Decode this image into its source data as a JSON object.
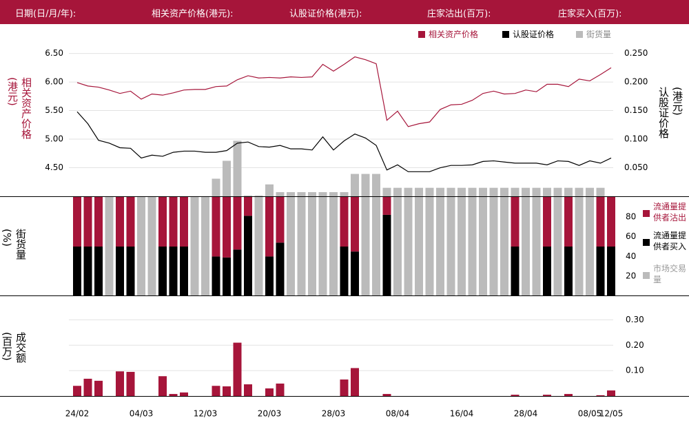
{
  "header": [
    "日期(日/月/年):",
    "相关资产价格(港元):",
    "认股证价格(港元):",
    "庄家沽出(百万):",
    "庄家买入(百万):"
  ],
  "chart_data": [
    {
      "type": "line",
      "y_label": "相关资产价格(港元)",
      "y2_label": "认股证价格(港元)",
      "ylim": [
        4.0,
        6.7
      ],
      "yticks": [
        {
          "value": 6.5,
          "label": "6.50"
        },
        {
          "value": 6.0,
          "label": "6.00"
        },
        {
          "value": 5.5,
          "label": "5.50"
        },
        {
          "value": 5.0,
          "label": "5.00"
        },
        {
          "value": 4.5,
          "label": "4.50"
        }
      ],
      "y2lim": [
        0.0,
        0.27
      ],
      "y2ticks": [
        {
          "value": 0.25,
          "label": "0.250"
        },
        {
          "value": 0.2,
          "label": "0.200"
        },
        {
          "value": 0.15,
          "label": "0.150"
        },
        {
          "value": 0.1,
          "label": "0.100"
        },
        {
          "value": 0.05,
          "label": "0.050"
        }
      ],
      "y3lim": [
        0,
        100
      ],
      "grid": true,
      "series": [
        {
          "name": "相关资产价格",
          "color": "#a6153a",
          "axis": "y",
          "values": [
            5.99,
            5.93,
            5.91,
            5.86,
            5.8,
            5.84,
            5.7,
            5.79,
            5.77,
            5.81,
            5.86,
            5.87,
            5.87,
            5.92,
            5.93,
            6.04,
            6.11,
            6.07,
            6.08,
            6.07,
            6.09,
            6.08,
            6.09,
            6.31,
            6.19,
            6.31,
            6.44,
            6.39,
            6.32,
            5.33,
            5.49,
            5.22,
            5.27,
            5.3,
            5.52,
            5.6,
            5.61,
            5.68,
            5.8,
            5.84,
            5.79,
            5.8,
            5.86,
            5.83,
            5.96,
            5.96,
            5.92,
            6.05,
            6.02,
            6.13,
            6.25
          ]
        },
        {
          "name": "认股证价格",
          "color": "#000000",
          "axis": "y2",
          "values": [
            0.148,
            0.127,
            0.098,
            0.093,
            0.085,
            0.084,
            0.067,
            0.072,
            0.07,
            0.077,
            0.079,
            0.079,
            0.077,
            0.077,
            0.08,
            0.093,
            0.095,
            0.087,
            0.086,
            0.089,
            0.083,
            0.083,
            0.081,
            0.104,
            0.081,
            0.097,
            0.109,
            0.102,
            0.089,
            0.046,
            0.055,
            0.043,
            0.043,
            0.043,
            0.05,
            0.054,
            0.054,
            0.055,
            0.061,
            0.062,
            0.06,
            0.058,
            0.058,
            0.058,
            0.055,
            0.062,
            0.061,
            0.054,
            0.062,
            0.058,
            0.067
          ]
        },
        {
          "name": "街货量",
          "color": "#bbbbbb",
          "type": "bar",
          "axis": "y3",
          "values": [
            0,
            0,
            0,
            0,
            0,
            0,
            0,
            0,
            0,
            0,
            0,
            0,
            0,
            11.4,
            23,
            36,
            0.5,
            0.5,
            7.7,
            2.7,
            2.7,
            2.7,
            2.7,
            2.7,
            2.7,
            2.7,
            14.5,
            14.5,
            14.5,
            5.5,
            5.5,
            5.5,
            5.5,
            5.5,
            5.5,
            5.5,
            5.5,
            5.5,
            5.5,
            5.5,
            5.5,
            5.5,
            5.5,
            5.5,
            5.5,
            5.5,
            5.5,
            5.5,
            5.5,
            5.5,
            0
          ]
        }
      ]
    },
    {
      "type": "stacked_bar",
      "y_label": "街货量(%)",
      "ylim": [
        0,
        100
      ],
      "yticks": [
        20,
        40,
        60,
        80
      ],
      "series": [
        {
          "name": "流通量提供者沽出",
          "color": "#a6153a",
          "values": [
            50,
            50,
            50,
            0,
            50,
            50,
            0,
            0,
            50,
            50,
            50,
            0,
            0,
            60,
            61,
            53,
            19,
            0,
            60,
            46,
            0,
            0,
            0,
            0,
            0,
            50,
            55,
            0,
            0,
            18,
            0,
            0,
            0,
            0,
            0,
            0,
            0,
            0,
            0,
            0,
            0,
            50,
            0,
            0,
            50,
            0,
            50,
            0,
            0,
            50,
            50
          ]
        },
        {
          "name": "流通量提供者买入",
          "color": "#000000",
          "values": [
            50,
            50,
            50,
            0,
            50,
            50,
            0,
            0,
            50,
            50,
            50,
            0,
            0,
            40,
            39,
            47,
            81,
            0,
            40,
            54,
            0,
            0,
            0,
            0,
            0,
            50,
            45,
            0,
            0,
            82,
            0,
            0,
            0,
            0,
            0,
            0,
            0,
            0,
            0,
            0,
            0,
            50,
            0,
            0,
            50,
            0,
            50,
            0,
            0,
            50,
            50
          ]
        },
        {
          "name": "市场交易量",
          "color": "#bbbbbb",
          "values": [
            0,
            0,
            0,
            100,
            0,
            0,
            100,
            100,
            0,
            0,
            0,
            100,
            100,
            0,
            0,
            0,
            0,
            100,
            0,
            0,
            100,
            100,
            100,
            100,
            100,
            0,
            0,
            100,
            100,
            0,
            100,
            100,
            100,
            100,
            100,
            100,
            100,
            100,
            100,
            100,
            100,
            0,
            100,
            100,
            0,
            100,
            0,
            100,
            100,
            0,
            0
          ]
        }
      ]
    },
    {
      "type": "bar",
      "y_label": "成交额(百万)",
      "color": "#a6153a",
      "ylim": [
        0,
        0.32
      ],
      "grid": true,
      "yticks": [
        {
          "value": 0.1,
          "label": "0.10"
        },
        {
          "value": 0.2,
          "label": "0.20"
        },
        {
          "value": 0.3,
          "label": "0.30"
        }
      ],
      "categories": [
        "24/02",
        null,
        null,
        null,
        null,
        null,
        "04/03",
        null,
        null,
        null,
        null,
        null,
        "12/03",
        null,
        null,
        null,
        null,
        null,
        "20/03",
        null,
        null,
        null,
        null,
        null,
        "28/03",
        null,
        null,
        null,
        null,
        null,
        "08/04",
        null,
        null,
        null,
        null,
        null,
        "16/04",
        null,
        null,
        null,
        null,
        null,
        "28/04",
        null,
        null,
        null,
        null,
        null,
        "08/05",
        null,
        "12/05"
      ],
      "values": [
        0.04,
        0.068,
        0.06,
        0,
        0.097,
        0.095,
        0,
        0,
        0.078,
        0.008,
        0.014,
        0,
        0,
        0.04,
        0.038,
        0.21,
        0.046,
        0,
        0.03,
        0.049,
        0,
        0,
        0,
        0,
        0,
        0.065,
        0.11,
        0,
        0,
        0.008,
        0,
        0,
        0,
        0,
        0,
        0,
        0,
        0,
        0,
        0,
        0,
        0.005,
        0,
        0,
        0.005,
        0,
        0.008,
        0,
        0,
        0.003,
        0.022
      ]
    }
  ]
}
